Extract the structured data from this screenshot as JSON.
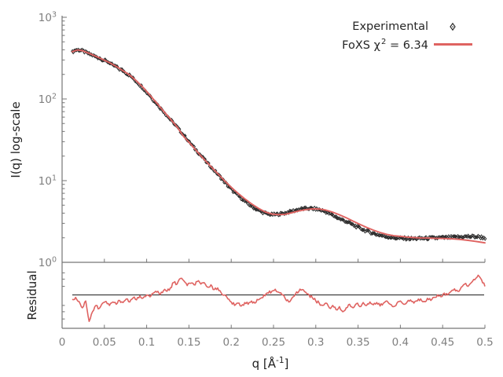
{
  "figure": {
    "background": "#ffffff"
  },
  "colors": {
    "fit_line": "#df6361",
    "experimental_points": "#2b2b2b",
    "axis_line": "#767676",
    "tick_label": "#7f7f7f",
    "text": "#1f1f1f",
    "baseline": "#1f1f1f"
  },
  "legend": {
    "items": [
      {
        "label": "Experimental",
        "marker": "thin-diamond",
        "color": "#2b2b2b"
      },
      {
        "label_pre": "FoXS χ",
        "label_sup": "2",
        "label_post": " = 6.34",
        "marker": "line",
        "color": "#df6361"
      }
    ]
  },
  "axes": {
    "main_ylabel": "I(q) log-scale",
    "residual_ylabel": "Residual",
    "xlabel": {
      "pre": "q [Å",
      "sup": "-1",
      "post": "]"
    },
    "x_tick_labels": [
      "0",
      "0.05",
      "0.1",
      "0.15",
      "0.2",
      "0.25",
      "0.3",
      "0.35",
      "0.4",
      "0.45",
      "0.5"
    ],
    "x_tick_values": [
      0,
      0.05,
      0.1,
      0.15,
      0.2,
      0.25,
      0.3,
      0.35,
      0.4,
      0.45,
      0.5
    ],
    "y_tick_base": "10",
    "y_tick_exponents": [
      3,
      2,
      1,
      0
    ]
  },
  "chart_data": [
    {
      "id": "main-profile",
      "type": "line",
      "xlabel": "q [Å^-1]",
      "ylabel": "I(q) log-scale",
      "yscale": "log",
      "ylim": [
        1,
        1000
      ],
      "xlim": [
        0,
        0.5
      ],
      "legend_position": "top-right",
      "grid": false,
      "series": [
        {
          "name": "Experimental",
          "style": "points",
          "marker": "thin-diamond",
          "color": "#2b2b2b",
          "q0": 0.012,
          "dq": 0.004,
          "scatter_band_decades": 0.013,
          "values": [
            375,
            398,
            398,
            390,
            372,
            356,
            344,
            327,
            318,
            302,
            292,
            278,
            258,
            250,
            232,
            222,
            205,
            196,
            178,
            164,
            148,
            136,
            120,
            110,
            97,
            88,
            78,
            71,
            62,
            56,
            50.5,
            45,
            40,
            35.8,
            31.8,
            28.3,
            25.4,
            22.6,
            20.4,
            18.4,
            16.4,
            14.8,
            13.3,
            12.0,
            10.8,
            9.7,
            8.7,
            7.9,
            7.2,
            6.6,
            6.1,
            5.6,
            5.2,
            4.85,
            4.6,
            4.35,
            4.15,
            4.0,
            3.9,
            3.85,
            3.85,
            3.9,
            3.95,
            4.02,
            4.12,
            4.24,
            4.34,
            4.44,
            4.52,
            4.56,
            4.57,
            4.55,
            4.5,
            4.42,
            4.3,
            4.14,
            3.97,
            3.78,
            3.6,
            3.42,
            3.28,
            3.16,
            3.02,
            2.88,
            2.75,
            2.63,
            2.52,
            2.43,
            2.34,
            2.27,
            2.2,
            2.15,
            2.1,
            2.06,
            2.03,
            2.0,
            1.98,
            1.97,
            1.96,
            1.96,
            1.95,
            1.95,
            1.96,
            1.96,
            1.97,
            1.97,
            1.98,
            1.98,
            1.99,
            2.0,
            2.0,
            2.01,
            2.02,
            2.03,
            2.04,
            2.05,
            2.06,
            2.07,
            2.07,
            2.06,
            2.05,
            2.03,
            2.0
          ]
        },
        {
          "name": "FoXS",
          "chi2": 6.34,
          "style": "line",
          "color": "#df6361",
          "points": [
            [
              0.012,
              378
            ],
            [
              0.018,
              398
            ],
            [
              0.024,
              390
            ],
            [
              0.032,
              362
            ],
            [
              0.04,
              332
            ],
            [
              0.048,
              305
            ],
            [
              0.056,
              278
            ],
            [
              0.064,
              250
            ],
            [
              0.072,
              222
            ],
            [
              0.08,
              196
            ],
            [
              0.088,
              166
            ],
            [
              0.096,
              138
            ],
            [
              0.104,
              111
            ],
            [
              0.112,
              89
            ],
            [
              0.12,
              71
            ],
            [
              0.128,
              57
            ],
            [
              0.136,
              45.5
            ],
            [
              0.144,
              34.5
            ],
            [
              0.152,
              28.0
            ],
            [
              0.16,
              22.5
            ],
            [
              0.168,
              18.2
            ],
            [
              0.176,
              14.9
            ],
            [
              0.184,
              12.2
            ],
            [
              0.192,
              10.0
            ],
            [
              0.2,
              8.3
            ],
            [
              0.208,
              7.0
            ],
            [
              0.216,
              6.0
            ],
            [
              0.224,
              5.2
            ],
            [
              0.232,
              4.6
            ],
            [
              0.24,
              4.15
            ],
            [
              0.248,
              3.9
            ],
            [
              0.256,
              3.83
            ],
            [
              0.264,
              3.88
            ],
            [
              0.272,
              4.05
            ],
            [
              0.28,
              4.25
            ],
            [
              0.288,
              4.42
            ],
            [
              0.296,
              4.52
            ],
            [
              0.304,
              4.5
            ],
            [
              0.312,
              4.36
            ],
            [
              0.32,
              4.12
            ],
            [
              0.328,
              3.82
            ],
            [
              0.336,
              3.52
            ],
            [
              0.344,
              3.2
            ],
            [
              0.352,
              2.92
            ],
            [
              0.36,
              2.68
            ],
            [
              0.368,
              2.48
            ],
            [
              0.376,
              2.32
            ],
            [
              0.384,
              2.2
            ],
            [
              0.392,
              2.12
            ],
            [
              0.4,
              2.08
            ],
            [
              0.408,
              2.04
            ],
            [
              0.416,
              2.01
            ],
            [
              0.424,
              1.99
            ],
            [
              0.432,
              1.98
            ],
            [
              0.44,
              1.97
            ],
            [
              0.448,
              1.96
            ],
            [
              0.456,
              1.95
            ],
            [
              0.464,
              1.93
            ],
            [
              0.472,
              1.9
            ],
            [
              0.48,
              1.86
            ],
            [
              0.488,
              1.81
            ],
            [
              0.496,
              1.76
            ],
            [
              0.5,
              1.73
            ]
          ]
        }
      ]
    },
    {
      "id": "residual-panel",
      "type": "line",
      "ylabel": "Residual",
      "yscale": "log",
      "ylim": [
        0.5,
        2
      ],
      "xlim": [
        0,
        0.5
      ],
      "baseline": 1.0,
      "yticks_minor": [
        1.6,
        1.4,
        1.2,
        0.8,
        0.7,
        0.6
      ],
      "series": [
        {
          "name": "residual",
          "style": "line",
          "color": "#df6361",
          "q0": 0.012,
          "dq": 0.004,
          "noise_band_factor": 0.05,
          "values": [
            0.91,
            0.95,
            0.87,
            0.76,
            0.88,
            0.57,
            0.7,
            0.8,
            0.75,
            0.84,
            0.87,
            0.8,
            0.86,
            0.82,
            0.89,
            0.85,
            0.92,
            0.86,
            0.94,
            0.9,
            0.98,
            0.94,
            1.0,
            0.96,
            1.04,
            1.06,
            1.01,
            1.1,
            1.08,
            1.16,
            1.3,
            1.26,
            1.42,
            1.35,
            1.22,
            1.28,
            1.24,
            1.33,
            1.26,
            1.3,
            1.18,
            1.24,
            1.12,
            1.16,
            1.05,
            1.0,
            0.92,
            0.86,
            0.8,
            0.84,
            0.79,
            0.85,
            0.82,
            0.88,
            0.84,
            0.9,
            0.94,
            0.98,
            1.04,
            1.08,
            1.13,
            1.06,
            1.0,
            0.92,
            0.86,
            0.94,
            1.02,
            1.08,
            1.12,
            1.06,
            1.0,
            0.94,
            0.88,
            0.84,
            0.8,
            0.84,
            0.76,
            0.8,
            0.73,
            0.78,
            0.7,
            0.76,
            0.82,
            0.76,
            0.83,
            0.78,
            0.85,
            0.8,
            0.86,
            0.81,
            0.85,
            0.79,
            0.84,
            0.88,
            0.82,
            0.78,
            0.84,
            0.88,
            0.82,
            0.86,
            0.9,
            0.84,
            0.88,
            0.92,
            0.87,
            0.93,
            0.89,
            0.95,
            1.0,
            0.96,
            1.04,
            1.0,
            1.08,
            1.14,
            1.08,
            1.18,
            1.26,
            1.2,
            1.3,
            1.38,
            1.52,
            1.38,
            1.2
          ]
        }
      ]
    }
  ]
}
